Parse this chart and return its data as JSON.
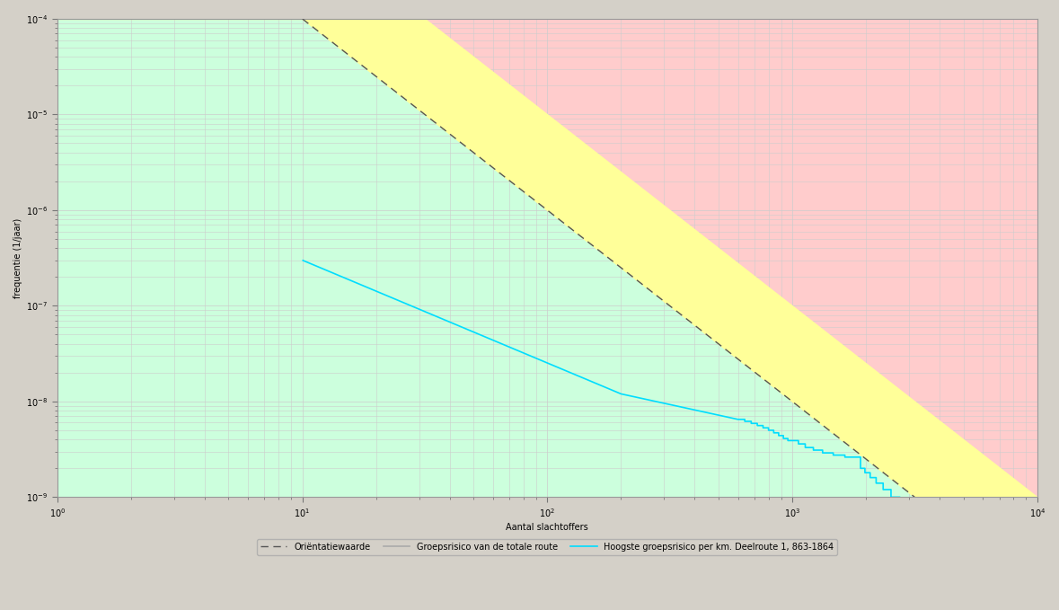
{
  "title": "",
  "xlabel": "Aantal slachtoffers",
  "ylabel": "frequentie (1/jaar)",
  "xlim": [
    1,
    10000
  ],
  "ylim": [
    1e-09,
    0.0001
  ],
  "fig_bg": "#d4d0c8",
  "plot_bg": "#ffcccc",
  "pink_color": "#ffcccc",
  "yellow_color": "#ffff99",
  "green_color": "#ccffdd",
  "orient_C": 0.01,
  "orient_color": "#555555",
  "orient_lw": 1.0,
  "cyan_color": "#00ddff",
  "cyan_lw": 1.2,
  "grid_color": "#cccccc",
  "grid_lw": 0.5,
  "legend_labels": [
    "Oriëntatiewaarde",
    "Groepsrisico van de totale route",
    "Hoogste groepsrisico per km. Deelroute 1, 863-1864"
  ],
  "legend_colors": [
    "#555555",
    "#aaaaaa",
    "#00ddff"
  ],
  "legend_ls": [
    "dashed",
    "solid",
    "solid"
  ],
  "tick_labelsize": 7,
  "xlabel_fontsize": 7,
  "ylabel_fontsize": 7
}
